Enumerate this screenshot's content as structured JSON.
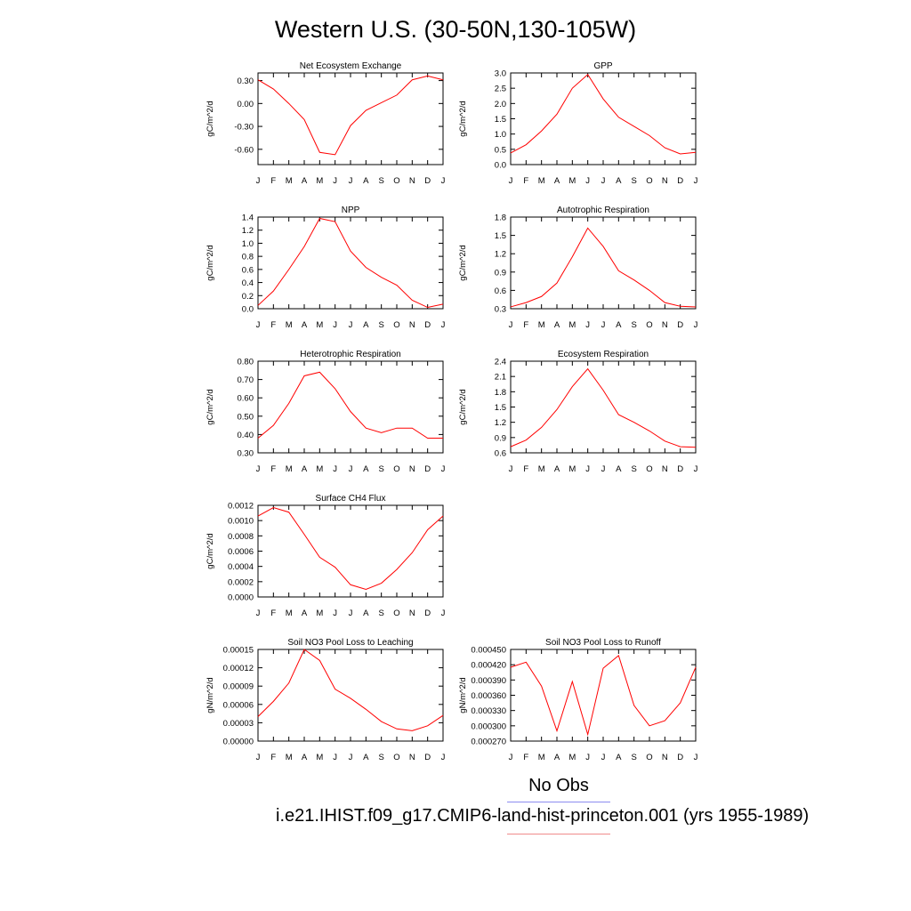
{
  "page_title": "Western U.S. (30-50N,130-105W)",
  "legend": {
    "obs_label": "No Obs",
    "run_label": "i.e21.IHIST.f09_g17.CMIP6-land-hist-princeton.001 (yrs 1955-1989)",
    "obs_color": "#8c8cf0",
    "run_color": "#f08c8c"
  },
  "line_color": "#ff0000",
  "months": [
    "J",
    "F",
    "M",
    "A",
    "M",
    "J",
    "J",
    "A",
    "S",
    "O",
    "N",
    "D",
    "J"
  ],
  "chart_data": [
    {
      "type": "line",
      "title": "Net Ecosystem Exchange",
      "ylabel": "gC/m^2/d",
      "ylim": [
        -0.8,
        0.4
      ],
      "yticks": [
        -0.6,
        -0.3,
        0.0,
        0.3
      ],
      "yticklabels": [
        "-0.60",
        "-0.30",
        "0.00",
        "0.30"
      ],
      "values": [
        0.31,
        0.19,
        0.0,
        -0.21,
        -0.64,
        -0.67,
        -0.29,
        -0.09,
        0.01,
        0.11,
        0.31,
        0.36,
        0.31
      ]
    },
    {
      "type": "line",
      "title": "GPP",
      "ylabel": "gC/m^2/d",
      "ylim": [
        0.0,
        3.0
      ],
      "yticks": [
        0.0,
        0.5,
        1.0,
        1.5,
        2.0,
        2.5,
        3.0
      ],
      "yticklabels": [
        "0.0",
        "0.5",
        "1.0",
        "1.5",
        "2.0",
        "2.5",
        "3.0"
      ],
      "values": [
        0.38,
        0.65,
        1.1,
        1.65,
        2.5,
        2.95,
        2.15,
        1.55,
        1.25,
        0.95,
        0.55,
        0.35,
        0.4
      ]
    },
    {
      "type": "line",
      "title": "NPP",
      "ylabel": "gC/m^2/d",
      "ylim": [
        0.0,
        1.4
      ],
      "yticks": [
        0.0,
        0.2,
        0.4,
        0.6,
        0.8,
        1.0,
        1.2,
        1.4
      ],
      "yticklabels": [
        "0.0",
        "0.2",
        "0.4",
        "0.6",
        "0.8",
        "1.0",
        "1.2",
        "1.4"
      ],
      "values": [
        0.05,
        0.27,
        0.6,
        0.95,
        1.38,
        1.33,
        0.88,
        0.63,
        0.48,
        0.36,
        0.13,
        0.02,
        0.07
      ]
    },
    {
      "type": "line",
      "title": "Autotrophic Respiration",
      "ylabel": "gC/m^2/d",
      "ylim": [
        0.3,
        1.8
      ],
      "yticks": [
        0.3,
        0.6,
        0.9,
        1.2,
        1.5,
        1.8
      ],
      "yticklabels": [
        "0.3",
        "0.6",
        "0.9",
        "1.2",
        "1.5",
        "1.8"
      ],
      "values": [
        0.33,
        0.4,
        0.5,
        0.72,
        1.15,
        1.62,
        1.32,
        0.92,
        0.77,
        0.6,
        0.4,
        0.34,
        0.33
      ]
    },
    {
      "type": "line",
      "title": "Heterotrophic Respiration",
      "ylabel": "gC/m^2/d",
      "ylim": [
        0.3,
        0.8
      ],
      "yticks": [
        0.3,
        0.4,
        0.5,
        0.6,
        0.7,
        0.8
      ],
      "yticklabels": [
        "0.30",
        "0.40",
        "0.50",
        "0.60",
        "0.70",
        "0.80"
      ],
      "values": [
        0.38,
        0.45,
        0.57,
        0.72,
        0.74,
        0.65,
        0.525,
        0.435,
        0.41,
        0.435,
        0.435,
        0.38,
        0.38
      ]
    },
    {
      "type": "line",
      "title": "Ecosystem Respiration",
      "ylabel": "gC/m^2/d",
      "ylim": [
        0.6,
        2.4
      ],
      "yticks": [
        0.6,
        0.9,
        1.2,
        1.5,
        1.8,
        2.1,
        2.4
      ],
      "yticklabels": [
        "0.6",
        "0.9",
        "1.2",
        "1.5",
        "1.8",
        "2.1",
        "2.4"
      ],
      "values": [
        0.72,
        0.85,
        1.1,
        1.45,
        1.9,
        2.25,
        1.83,
        1.35,
        1.2,
        1.03,
        0.83,
        0.72,
        0.71
      ]
    },
    {
      "type": "line",
      "title": "Surface CH4 Flux",
      "ylabel": "gC/m^2/d",
      "ylim": [
        0.0,
        0.0012
      ],
      "yticks": [
        0.0,
        0.0002,
        0.0004,
        0.0006,
        0.0008,
        0.001,
        0.0012
      ],
      "yticklabels": [
        "0.0000",
        "0.0002",
        "0.0004",
        "0.0006",
        "0.0008",
        "0.0010",
        "0.0012"
      ],
      "values": [
        0.00106,
        0.00117,
        0.00111,
        0.00082,
        0.00052,
        0.00039,
        0.00016,
        0.0001,
        0.00018,
        0.00036,
        0.00058,
        0.00088,
        0.00106
      ]
    },
    {
      "type": "line",
      "title": "Soil NO3 Pool Loss to Leaching",
      "ylabel": "gN/m^2/d",
      "ylim": [
        0.0,
        0.00015
      ],
      "yticks": [
        0.0,
        3e-05,
        6e-05,
        9e-05,
        0.00012,
        0.00015
      ],
      "yticklabels": [
        "0.00000",
        "0.00003",
        "0.00006",
        "0.00009",
        "0.00012",
        "0.00015"
      ],
      "values": [
        4e-05,
        6.5e-05,
        9.5e-05,
        0.00015,
        0.000132,
        8.5e-05,
        7e-05,
        5.2e-05,
        3.2e-05,
        2e-05,
        1.7e-05,
        2.5e-05,
        4.2e-05
      ]
    },
    {
      "type": "line",
      "title": "Soil NO3 Pool Loss to Runoff",
      "ylabel": "gN/m^2/d",
      "ylim": [
        0.00027,
        0.00045
      ],
      "yticks": [
        0.00027,
        0.0003,
        0.00033,
        0.00036,
        0.00039,
        0.00042,
        0.00045
      ],
      "yticklabels": [
        "0.000270",
        "0.000300",
        "0.000330",
        "0.000360",
        "0.000390",
        "0.000420",
        "0.000450"
      ],
      "values": [
        0.000415,
        0.000425,
        0.000378,
        0.00029,
        0.000387,
        0.000283,
        0.000413,
        0.000438,
        0.00034,
        0.0003,
        0.00031,
        0.000345,
        0.000415
      ]
    }
  ]
}
